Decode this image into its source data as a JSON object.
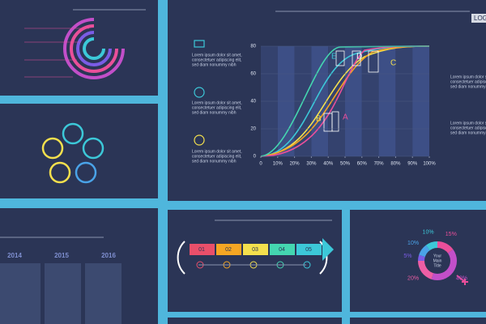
{
  "main_slide": {
    "logo": "LOGOT",
    "notes": [
      [
        "Lorem ipsum dolor sit amet,",
        "consectetuer adipiscing elit,",
        "sed diam nonummy nibh"
      ],
      [
        "Lorem ipsum dolor sit amet,",
        "consectetuer adipiscing elit,",
        "sed diam nonummy nibh"
      ],
      [
        "Lorem ipsum dolor sit amet,",
        "consectetuer adipiscing elit,",
        "sed diam nonummy nibh"
      ]
    ],
    "side_notes": [
      [
        "Lorem ipsum dolor sit amet,",
        "consectetuer adipiscing elit,",
        "sed diam nonummy nibh"
      ],
      [
        "Lorem ipsum dolor sit amet,",
        "consectetuer adipiscing elit,",
        "sed diam nonummy nibh"
      ]
    ],
    "chart": {
      "ylim": [
        0,
        80
      ],
      "yticks": [
        0,
        20,
        40,
        60,
        80
      ],
      "xlim": [
        0,
        100
      ],
      "xticks": [
        0,
        {
          "value": 10,
          "label": "10%"
        },
        {
          "value": 20,
          "label": "20%"
        },
        {
          "value": 30,
          "label": "30%"
        },
        {
          "value": 40,
          "label": "40%"
        },
        {
          "value": 50,
          "label": "50%"
        },
        {
          "value": 60,
          "label": "60%"
        },
        {
          "value": 70,
          "label": "70%"
        },
        {
          "value": 80,
          "label": "80%"
        },
        {
          "value": 90,
          "label": "90%"
        },
        {
          "value": 100,
          "label": "100%"
        }
      ],
      "labels": [
        "A",
        "B",
        "C",
        "D",
        "E"
      ]
    }
  },
  "timeline": {
    "years": [
      "2014",
      "2015",
      "2016"
    ]
  },
  "process": {
    "steps": [
      "01",
      "02",
      "03",
      "04",
      "05"
    ]
  },
  "donut": {
    "center": [
      "Your",
      "Main",
      "Title"
    ],
    "values": [
      15,
      40,
      20,
      5,
      10,
      10
    ],
    "value_labels": [
      "15%",
      "40%",
      "20%",
      "5%",
      "10%",
      "10%"
    ],
    "colors": [
      "#e94f9a",
      "#c24fc9",
      "#ee5ea5",
      "#7b5ce6",
      "#4aa3e8",
      "#3cc8d8"
    ]
  }
}
